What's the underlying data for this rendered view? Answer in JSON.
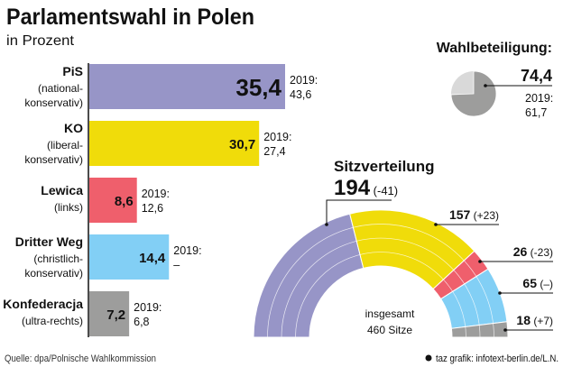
{
  "title": "Parlamentswahl in Polen",
  "subtitle": "in Prozent",
  "source": "Quelle: dpa/Polnische Wahlkommission",
  "credit": "taz grafik: infotext-berlin.de/L.N.",
  "chart_data": [
    {
      "type": "bar",
      "orientation": "horizontal",
      "unit": "in Prozent",
      "categories": [
        "PiS",
        "KO",
        "Lewica",
        "Dritter Weg",
        "Konfederacja"
      ],
      "descriptions": [
        [
          "(national-",
          "konservativ)"
        ],
        [
          "(liberal-",
          "konservativ)"
        ],
        [
          "(links)"
        ],
        [
          "(christlich-",
          "konservativ)"
        ],
        [
          "(ultra-rechts)"
        ]
      ],
      "values": [
        35.4,
        30.7,
        8.6,
        14.4,
        7.2
      ],
      "value_labels": [
        "35,4",
        "30,7",
        "8,6",
        "14,4",
        "7,2"
      ],
      "previous_label": "2019:",
      "previous_values": [
        "43,6",
        "27,4",
        "12,6",
        "–",
        "6,8"
      ],
      "colors": [
        "#9795c7",
        "#f0dc0a",
        "#ef5f6c",
        "#82cff5",
        "#9d9d9c"
      ]
    },
    {
      "type": "pie",
      "title": "Wahlbeteiligung:",
      "value": 74.4,
      "value_label": "74,4",
      "previous_label": "2019:",
      "previous_value": "61,7",
      "colors": [
        "#9d9d9c",
        "#d9d9d9"
      ]
    },
    {
      "type": "pie",
      "subtype": "parliament-semicircle",
      "title": "Sitzverteilung",
      "center_label": [
        "insgesamt",
        "460 Sitze"
      ],
      "total": 460,
      "categories": [
        "PiS",
        "KO",
        "Lewica",
        "Dritter Weg",
        "Konfederacja"
      ],
      "values": [
        194,
        157,
        26,
        65,
        18
      ],
      "changes": [
        "(-41)",
        "(+23)",
        "(-23)",
        "(–)",
        "(+7)"
      ],
      "colors": [
        "#9795c7",
        "#f0dc0a",
        "#ef5f6c",
        "#82cff5",
        "#9d9d9c"
      ]
    }
  ]
}
